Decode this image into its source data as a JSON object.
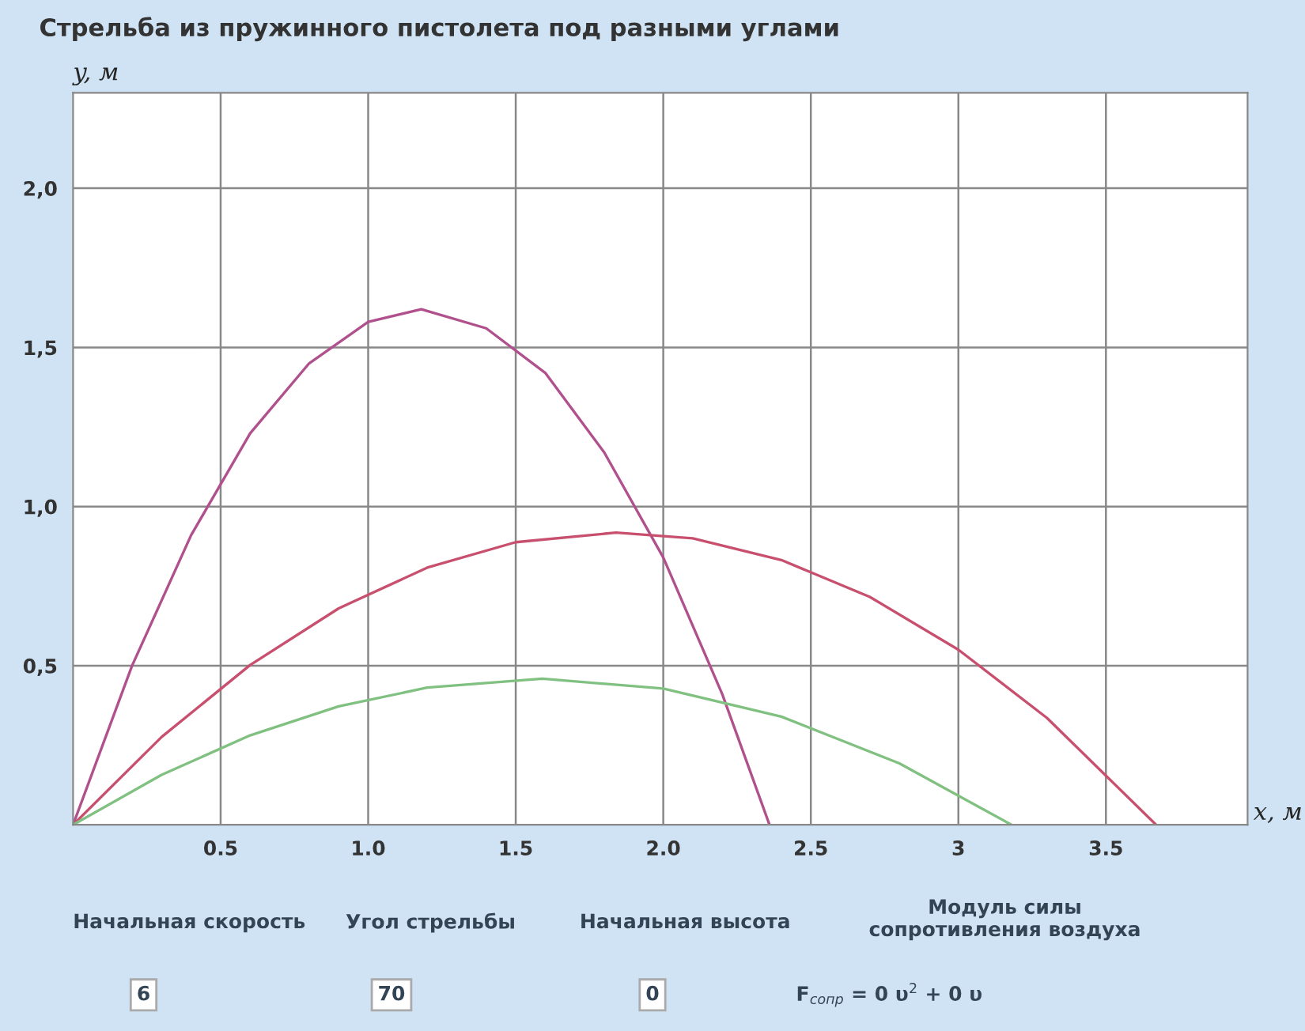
{
  "chart_data": {
    "type": "line",
    "title": "Стрельба из пружинного пистолета под разными углами",
    "xlabel": "x, м",
    "ylabel": "y, м",
    "xlim": [
      0,
      3.98
    ],
    "ylim": [
      0,
      2.3
    ],
    "xticks": [
      {
        "value": 0.5,
        "label": "0.5"
      },
      {
        "value": 1.0,
        "label": "1.0"
      },
      {
        "value": 1.5,
        "label": "1.5"
      },
      {
        "value": 2.0,
        "label": "2.0"
      },
      {
        "value": 2.5,
        "label": "2.5"
      },
      {
        "value": 3,
        "label": "3"
      },
      {
        "value": 3.5,
        "label": "3.5"
      }
    ],
    "yticks": [
      {
        "value": 0.5,
        "label": "0,5"
      },
      {
        "value": 1.0,
        "label": "1,0"
      },
      {
        "value": 1.5,
        "label": "1,5"
      },
      {
        "value": 2.0,
        "label": "2,0"
      }
    ],
    "grid": true,
    "marker": "none",
    "line_style": "solid",
    "series": [
      {
        "color": "#b0508c",
        "x": [
          0,
          0.2,
          0.4,
          0.6,
          0.8,
          1.0,
          1.18,
          1.4,
          1.6,
          1.8,
          2.0,
          2.2,
          2.36
        ],
        "values": [
          0,
          0.5,
          0.91,
          1.23,
          1.45,
          1.58,
          1.62,
          1.56,
          1.42,
          1.17,
          0.84,
          0.41,
          0
        ]
      },
      {
        "color": "#c8506e",
        "x": [
          0,
          0.3,
          0.6,
          0.9,
          1.2,
          1.5,
          1.84,
          2.1,
          2.4,
          2.7,
          3.0,
          3.3,
          3.67
        ],
        "values": [
          0,
          0.276,
          0.502,
          0.68,
          0.808,
          0.888,
          0.918,
          0.9,
          0.832,
          0.716,
          0.55,
          0.336,
          0
        ]
      },
      {
        "color": "#80c080",
        "x": [
          0,
          0.3,
          0.6,
          0.9,
          1.2,
          1.59,
          2.0,
          2.4,
          2.8,
          3.18
        ],
        "values": [
          0,
          0.157,
          0.281,
          0.372,
          0.431,
          0.459,
          0.428,
          0.34,
          0.193,
          0
        ]
      }
    ],
    "annotations": [
      "Начальная скорость",
      "Угол стрельбы",
      "Начальная высота",
      "Модуль силы\nсопротивления воздуха",
      "6",
      "70",
      "0",
      "F$_{сопр}$ = 0 υ$^{2}$ + 0 υ"
    ]
  }
}
